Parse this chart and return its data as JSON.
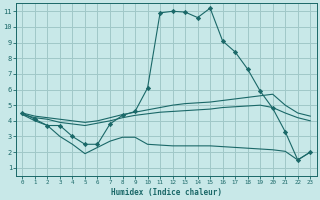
{
  "xlabel": "Humidex (Indice chaleur)",
  "ylabel": "",
  "xlim": [
    -0.5,
    23.5
  ],
  "ylim": [
    0.5,
    11.5
  ],
  "xticks": [
    0,
    1,
    2,
    3,
    4,
    5,
    6,
    7,
    8,
    9,
    10,
    11,
    12,
    13,
    14,
    15,
    16,
    17,
    18,
    19,
    20,
    21,
    22,
    23
  ],
  "yticks": [
    1,
    2,
    3,
    4,
    5,
    6,
    7,
    8,
    9,
    10,
    11
  ],
  "bg_color": "#c8e8e8",
  "grid_color": "#a0c8c8",
  "line_color": "#1a6868",
  "lines": [
    {
      "x": [
        0,
        1,
        2,
        3,
        4,
        5,
        6,
        7,
        8,
        9,
        10,
        11,
        12,
        13,
        14,
        15,
        16,
        17,
        18,
        19,
        20,
        21,
        22,
        23
      ],
      "y": [
        4.5,
        4.1,
        3.7,
        3.7,
        3.0,
        2.5,
        2.5,
        3.8,
        4.35,
        4.6,
        6.1,
        10.9,
        11.0,
        10.95,
        10.6,
        11.2,
        9.1,
        8.4,
        7.3,
        5.9,
        4.8,
        3.3,
        1.5,
        2.0
      ],
      "marker": "D",
      "markersize": 2.2
    },
    {
      "x": [
        0,
        1,
        2,
        3,
        4,
        5,
        6,
        7,
        8,
        9,
        10,
        11,
        12,
        13,
        14,
        15,
        16,
        17,
        18,
        19,
        20,
        21,
        22,
        23
      ],
      "y": [
        4.5,
        4.3,
        4.2,
        4.1,
        4.0,
        3.9,
        4.0,
        4.2,
        4.4,
        4.55,
        4.7,
        4.85,
        5.0,
        5.1,
        5.15,
        5.2,
        5.3,
        5.4,
        5.5,
        5.6,
        5.7,
        5.0,
        4.5,
        4.3
      ],
      "marker": null,
      "markersize": 0
    },
    {
      "x": [
        0,
        1,
        2,
        3,
        4,
        5,
        6,
        7,
        8,
        9,
        10,
        11,
        12,
        13,
        14,
        15,
        16,
        17,
        18,
        19,
        20,
        21,
        22,
        23
      ],
      "y": [
        4.4,
        4.2,
        4.1,
        3.9,
        3.8,
        3.7,
        3.85,
        4.0,
        4.2,
        4.35,
        4.45,
        4.55,
        4.6,
        4.65,
        4.7,
        4.75,
        4.85,
        4.9,
        4.95,
        5.0,
        4.85,
        4.5,
        4.2,
        4.0
      ],
      "marker": null,
      "markersize": 0
    },
    {
      "x": [
        0,
        1,
        2,
        3,
        4,
        5,
        6,
        7,
        8,
        9,
        10,
        11,
        12,
        13,
        14,
        15,
        16,
        17,
        18,
        19,
        20,
        21,
        22,
        23
      ],
      "y": [
        4.4,
        4.0,
        3.7,
        3.0,
        2.5,
        1.9,
        2.3,
        2.7,
        2.95,
        2.95,
        2.5,
        2.45,
        2.4,
        2.4,
        2.4,
        2.4,
        2.35,
        2.3,
        2.25,
        2.2,
        2.15,
        2.05,
        1.5,
        2.0
      ],
      "marker": null,
      "markersize": 0
    }
  ]
}
